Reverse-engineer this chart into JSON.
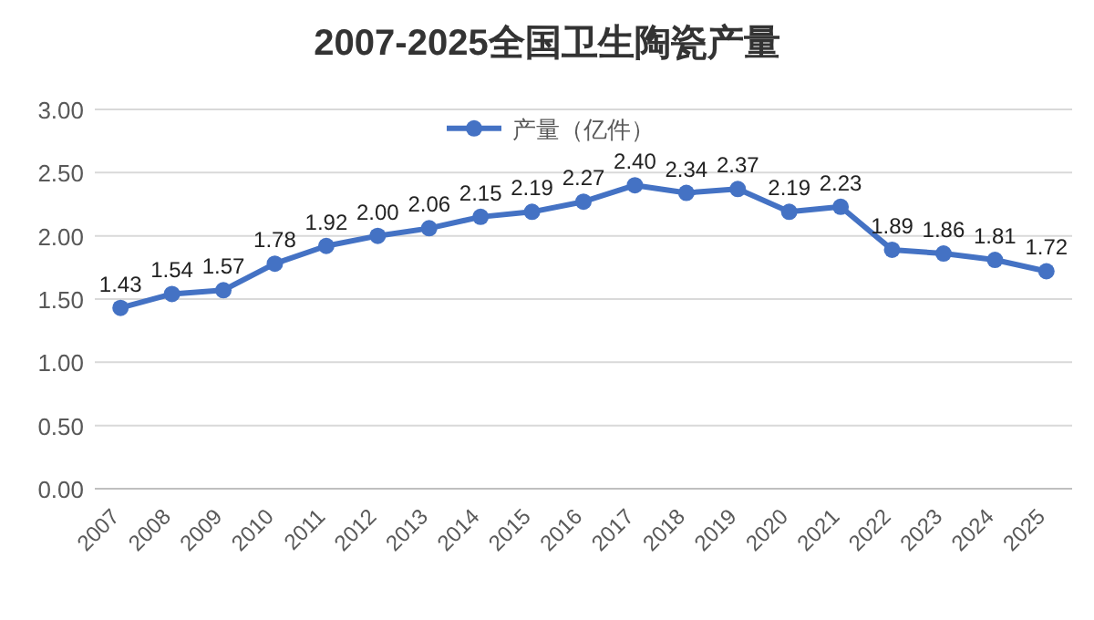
{
  "chart_data": {
    "type": "line",
    "title": "2007-2025全国卫生陶瓷产量",
    "categories": [
      "2007",
      "2008",
      "2009",
      "2010",
      "2011",
      "2012",
      "2013",
      "2014",
      "2015",
      "2016",
      "2017",
      "2018",
      "2019",
      "2020",
      "2021",
      "2022",
      "2023",
      "2024",
      "2025"
    ],
    "series": [
      {
        "name": "产量（亿件）",
        "color": "#4472c4",
        "values": [
          1.43,
          1.54,
          1.57,
          1.78,
          1.92,
          2.0,
          2.06,
          2.15,
          2.19,
          2.27,
          2.4,
          2.34,
          2.37,
          2.19,
          2.23,
          1.89,
          1.86,
          1.81,
          1.72
        ],
        "value_labels": [
          "1.43",
          "1.54",
          "1.57",
          "1.78",
          "1.92",
          "2.00",
          "2.06",
          "2.15",
          "2.19",
          "2.27",
          "2.40",
          "2.34",
          "2.37",
          "2.19",
          "2.23",
          "1.89",
          "1.86",
          "1.81",
          "1.72"
        ]
      }
    ],
    "ylim": [
      0,
      3
    ],
    "yticks": [
      {
        "value": 0,
        "label": "0.00"
      },
      {
        "value": 0.5,
        "label": "0.50"
      },
      {
        "value": 1,
        "label": "1.00"
      },
      {
        "value": 1.5,
        "label": "1.50"
      },
      {
        "value": 2,
        "label": "2.00"
      },
      {
        "value": 2.5,
        "label": "2.50"
      },
      {
        "value": 3,
        "label": "3.00"
      }
    ],
    "grid": "y",
    "legend": "top",
    "marker": "circle",
    "line_style": "solid"
  }
}
